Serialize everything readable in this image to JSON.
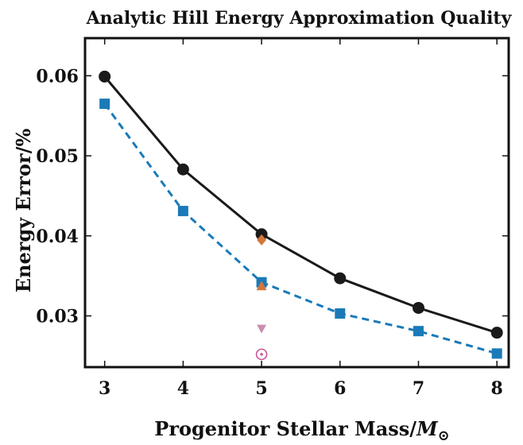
{
  "chart_data": {
    "type": "line",
    "title": "Analytic Hill Energy Approximation Quality",
    "xlabel": "Progenitor Stellar Mass/",
    "xlabel_symbol": "M",
    "xlabel_subscript": "⊙",
    "ylabel": "Energy Error/%",
    "xlim": [
      2.75,
      8.15
    ],
    "ylim": [
      0.0236,
      0.0647
    ],
    "x_ticks": [
      "3",
      "4",
      "5",
      "6",
      "7",
      "8"
    ],
    "y_ticks": [
      "0.03",
      "0.04",
      "0.05",
      "0.06"
    ],
    "grid": false,
    "legend": "none",
    "x": [
      3,
      4,
      5,
      6,
      7,
      8
    ],
    "series": [
      {
        "values": [
          0.0599,
          0.0483,
          0.0402,
          0.0347,
          0.031,
          0.0279
        ],
        "color": "#1a1a1a",
        "marker": "circle",
        "linestyle": "solid"
      },
      {
        "values": [
          0.0565,
          0.0431,
          0.0342,
          0.0303,
          0.0281,
          0.0253
        ],
        "color": "#1a7ab8",
        "marker": "square",
        "linestyle": "dashed"
      }
    ],
    "extra_points": [
      {
        "x": 5,
        "y": 0.0395,
        "marker": "diamond",
        "color": "#d4763a"
      },
      {
        "x": 5,
        "y": 0.0337,
        "marker": "triangle-up",
        "color": "#d4763a"
      },
      {
        "x": 5,
        "y": 0.0284,
        "marker": "triangle-down",
        "color": "#c890b0"
      },
      {
        "x": 5,
        "y": 0.0252,
        "marker": "circled-dot",
        "color": "#c8569a"
      }
    ]
  }
}
